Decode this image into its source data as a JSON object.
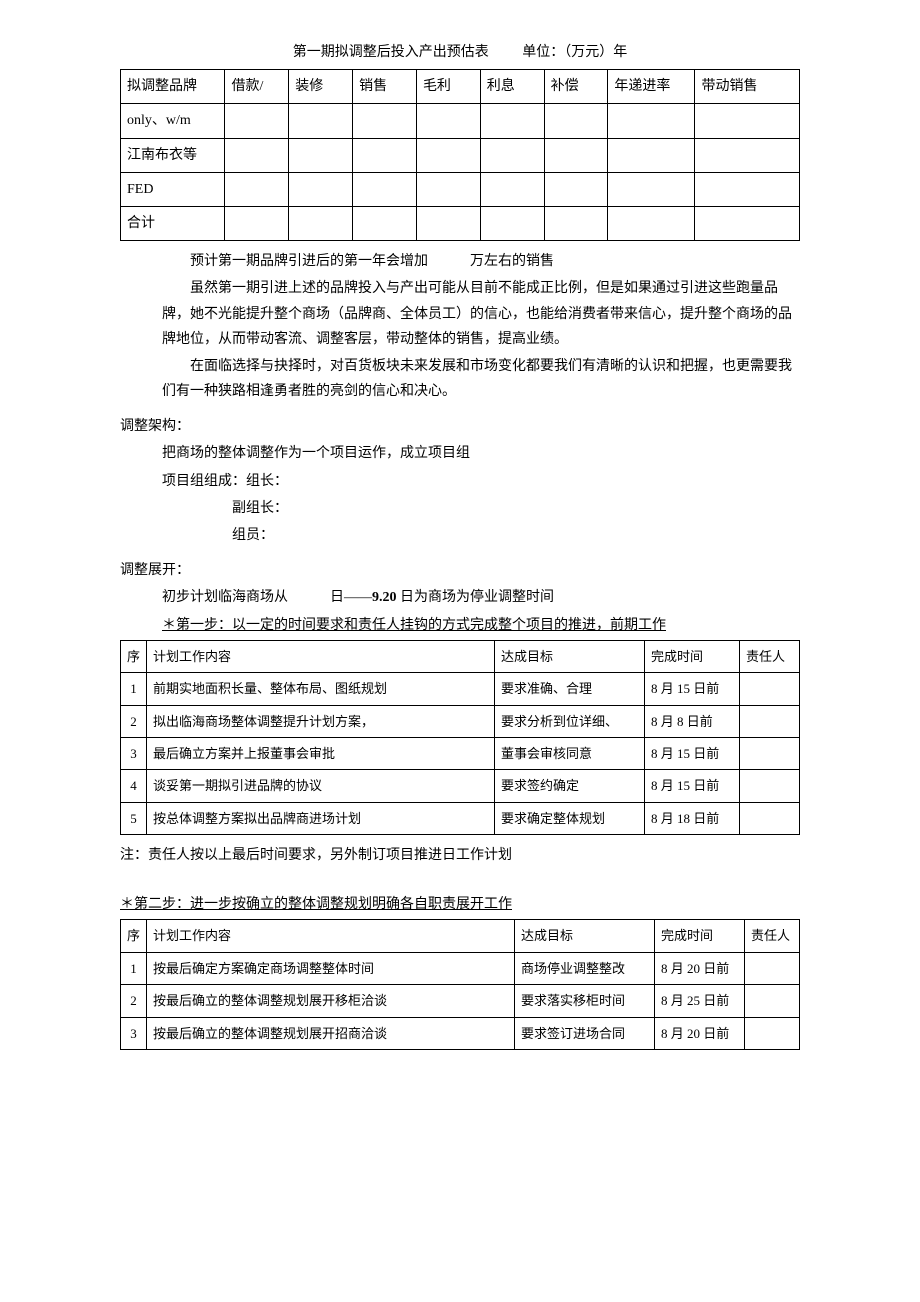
{
  "table1_title": "第一期拟调整后投入产出预估表",
  "table1_unit": "单位：（万元）年",
  "table1": {
    "headers": [
      "拟调整品牌",
      "借款/",
      "装修",
      "销售",
      "毛利",
      "利息",
      "补偿",
      "年递进率",
      "带动销售"
    ],
    "rows": [
      [
        "only、w/m",
        "",
        "",
        "",
        "",
        "",
        "",
        "",
        ""
      ],
      [
        "江南布衣等",
        "",
        "",
        "",
        "",
        "",
        "",
        "",
        ""
      ],
      [
        "FED",
        "",
        "",
        "",
        "",
        "",
        "",
        "",
        ""
      ],
      [
        "合计",
        "",
        "",
        "",
        "",
        "",
        "",
        "",
        ""
      ]
    ]
  },
  "p1": "预计第一期品牌引进后的第一年会增加　　　万左右的销售",
  "p2": "虽然第一期引进上述的品牌投入与产出可能从目前不能成正比例，但是如果通过引进这些跑量品牌，她不光能提升整个商场（品牌商、全体员工）的信心，也能给消费者带来信心，提升整个商场的品牌地位，从而带动客流、调整客层，带动整体的销售，提高业绩。",
  "p3": "在面临选择与抉择时，对百货板块未来发展和市场变化都要我们有清晰的认识和把握，也更需要我们有一种狭路相逢勇者胜的亮剑的信心和决心。",
  "s1": "调整架构：",
  "s1_l1": "把商场的整体调整作为一个项目运作，成立项目组",
  "s1_l2": "项目组组成：组长：",
  "s1_l3": "副组长：",
  "s1_l4": "组员：",
  "s2": "调整展开：",
  "s2_l1a": "初步计划临海商场从",
  "s2_l1b": "日——",
  "s2_l1c": "9.20",
  "s2_l1d": " 日为商场为停业调整时间",
  "step1": "＊第一步：以一定的时间要求和责任人挂钩的方式完成整个项目的推进，前期工作",
  "table2": {
    "headers": [
      "序",
      "计划工作内容",
      "达成目标",
      "完成时间",
      "责任人"
    ],
    "rows": [
      [
        "1",
        "前期实地面积长量、整体布局、图纸规划",
        "要求准确、合理",
        "8 月 15 日前",
        ""
      ],
      [
        "2",
        "拟出临海商场整体调整提升计划方案，",
        "要求分析到位详细、",
        "8 月 8 日前",
        ""
      ],
      [
        "3",
        "最后确立方案并上报董事会审批",
        "董事会审核同意",
        "8 月 15 日前",
        ""
      ],
      [
        "4",
        "谈妥第一期拟引进品牌的协议",
        "要求签约确定",
        "8 月 15 日前",
        ""
      ],
      [
        "5",
        "按总体调整方案拟出品牌商进场计划",
        "要求确定整体规划",
        "8 月 18 日前",
        ""
      ]
    ]
  },
  "note": "注：责任人按以上最后时间要求，另外制订项目推进日工作计划",
  "step2": "＊第二步：进一步按确立的整体调整规划明确各自职责展开工作",
  "table3": {
    "headers": [
      "序",
      "计划工作内容",
      "达成目标",
      "完成时间",
      "责任人"
    ],
    "rows": [
      [
        "1",
        "按最后确定方案确定商场调整整体时间",
        "商场停业调整整改",
        "8 月 20 日前",
        ""
      ],
      [
        "2",
        "按最后确立的整体调整规划展开移柜洽谈",
        "要求落实移柜时间",
        "8 月 25 日前",
        ""
      ],
      [
        "3",
        "按最后确立的整体调整规划展开招商洽谈",
        "要求签订进场合同",
        "8 月 20 日前",
        ""
      ]
    ]
  }
}
